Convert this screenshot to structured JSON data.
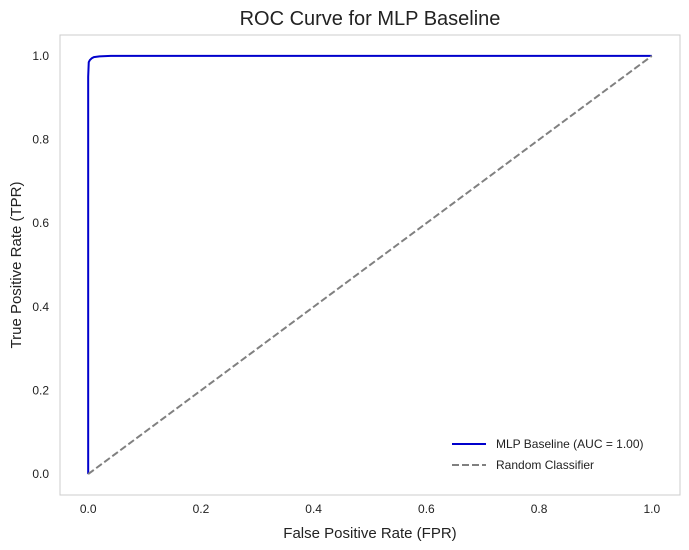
{
  "chart_data": {
    "type": "line",
    "title": "ROC Curve for MLP Baseline",
    "xlabel": "False Positive Rate (FPR)",
    "ylabel": "True Positive Rate (TPR)",
    "xlim": [
      -0.05,
      1.05
    ],
    "ylim": [
      -0.05,
      1.05
    ],
    "xticks": [
      0.0,
      0.2,
      0.4,
      0.6,
      0.8,
      1.0
    ],
    "yticks": [
      0.0,
      0.2,
      0.4,
      0.6,
      0.8,
      1.0
    ],
    "xtick_labels": [
      "0.0",
      "0.2",
      "0.4",
      "0.6",
      "0.8",
      "1.0"
    ],
    "ytick_labels": [
      "0.0",
      "0.2",
      "0.4",
      "0.6",
      "0.8",
      "1.0"
    ],
    "grid": false,
    "legend_position": "lower-right",
    "series": [
      {
        "name": "MLP Baseline (AUC = 1.00)",
        "color": "#0000cc",
        "style": "solid",
        "x": [
          0.0,
          0.0,
          0.001,
          0.003,
          0.006,
          0.01,
          0.02,
          0.04,
          1.0
        ],
        "y": [
          0.0,
          0.95,
          0.985,
          0.99,
          0.994,
          0.997,
          0.999,
          1.0,
          1.0
        ]
      },
      {
        "name": "Random Classifier",
        "color": "#808080",
        "style": "dashed",
        "x": [
          0.0,
          1.0
        ],
        "y": [
          0.0,
          1.0
        ]
      }
    ]
  }
}
